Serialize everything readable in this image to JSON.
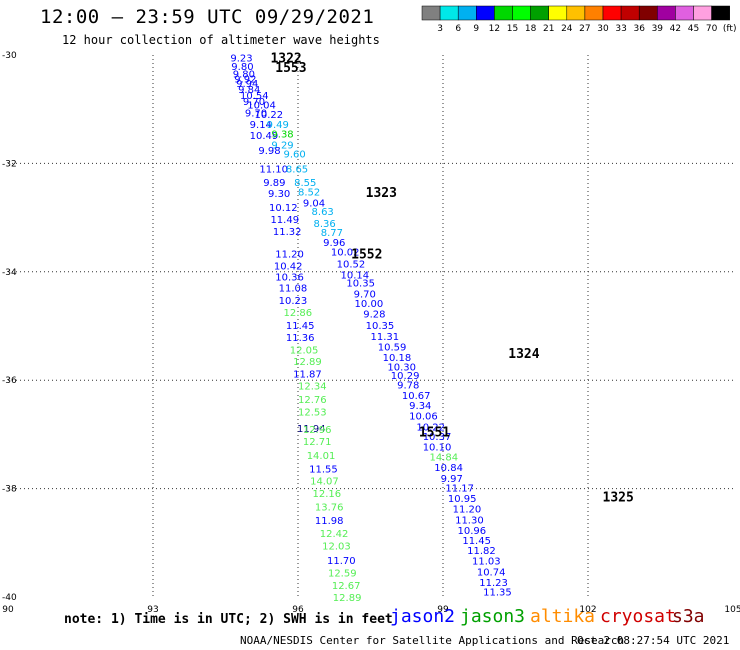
{
  "header": {
    "title": "12:00 – 23:59 UTC 09/29/2021",
    "subtitle": "12 hour collection of altimeter wave heights"
  },
  "footer": {
    "note": "note:  1) Time is in UTC;  2) SWH is in feet",
    "credit": "NOAA/NESDIS Center for Satellite Applications and Research",
    "timestamp": "Oct  2 08:27:54 UTC 2021",
    "satellites": [
      {
        "label": "jason2",
        "color": "#0000ff"
      },
      {
        "label": "jason3",
        "color": "#00a000"
      },
      {
        "label": "altika",
        "color": "#ff8c00"
      },
      {
        "label": "cryosat",
        "color": "#d00000"
      },
      {
        "label": "s3a",
        "color": "#800000"
      }
    ]
  },
  "colorbar": {
    "colors": [
      "#808080",
      "#00e8e8",
      "#00b0f0",
      "#0000ff",
      "#00d800",
      "#00ff00",
      "#00a000",
      "#ffff00",
      "#ffc000",
      "#ff8000",
      "#ff0000",
      "#c00000",
      "#800000",
      "#a000a0",
      "#e060e0",
      "#ffa0e0",
      "#000000"
    ],
    "labels": [
      "3",
      "6",
      "9",
      "12",
      "15",
      "18",
      "21",
      "24",
      "27",
      "30",
      "33",
      "36",
      "39",
      "42",
      "45",
      "70",
      "(ft)"
    ]
  },
  "chart_data": {
    "type": "scatter",
    "xlim": [
      90,
      105
    ],
    "ylim": [
      -40,
      -30
    ],
    "xticks": [
      90,
      93,
      96,
      99,
      102,
      105
    ],
    "yticks": [
      -30,
      -32,
      -34,
      -36,
      -38,
      -40
    ],
    "xtick_labels": [
      "90",
      "93",
      "96",
      "99",
      "102",
      "105"
    ],
    "ytick_labels": [
      "-30",
      "-32",
      "-34",
      "-36",
      "-38",
      "-40"
    ],
    "grid": true,
    "pass_labels": [
      {
        "text": "1322",
        "x": 95.43,
        "y": -30.05,
        "color": "#00a000"
      },
      {
        "text": "1553",
        "x": 95.53,
        "y": -30.22,
        "color": "#800000"
      },
      {
        "text": "1323",
        "x": 97.4,
        "y": -32.53,
        "color": "#00a000"
      },
      {
        "text": "1552",
        "x": 97.1,
        "y": -33.66,
        "color": "#800000"
      },
      {
        "text": "1324",
        "x": 100.35,
        "y": -35.5,
        "color": "#00a000"
      },
      {
        "text": "1551",
        "x": 98.5,
        "y": -36.95,
        "color": "#800000"
      },
      {
        "text": "1325",
        "x": 102.3,
        "y": -38.15,
        "color": "#00a000"
      }
    ],
    "points": [
      {
        "x": 94.6,
        "y": -30.05,
        "v": "9.23",
        "c": "#0000ff"
      },
      {
        "x": 94.62,
        "y": -30.2,
        "v": "9.80",
        "c": "#0000ff"
      },
      {
        "x": 94.65,
        "y": -30.34,
        "v": "9.80",
        "c": "#0000ff"
      },
      {
        "x": 94.68,
        "y": -30.43,
        "v": "9.92",
        "c": "#0000ff"
      },
      {
        "x": 94.72,
        "y": -30.52,
        "v": "9.94",
        "c": "#0000ff"
      },
      {
        "x": 94.76,
        "y": -30.63,
        "v": "9.84",
        "c": "#0000ff"
      },
      {
        "x": 94.8,
        "y": -30.74,
        "v": "10.54",
        "c": "#0000ff"
      },
      {
        "x": 94.86,
        "y": -30.85,
        "v": "9.70",
        "c": "#0000ff"
      },
      {
        "x": 94.95,
        "y": -30.91,
        "v": "10.04",
        "c": "#0000ff"
      },
      {
        "x": 94.9,
        "y": -31.06,
        "v": "9.70",
        "c": "#0000ff"
      },
      {
        "x": 95.1,
        "y": -31.09,
        "v": "10.22",
        "c": "#0000ff"
      },
      {
        "x": 95.0,
        "y": -31.27,
        "v": "9.14",
        "c": "#0000ff"
      },
      {
        "x": 95.35,
        "y": -31.27,
        "v": "9.49",
        "c": "#00b0f0"
      },
      {
        "x": 95.0,
        "y": -31.48,
        "v": "10.49",
        "c": "#0000ff"
      },
      {
        "x": 95.45,
        "y": -31.45,
        "v": "9.38",
        "c": "#00d800"
      },
      {
        "x": 95.45,
        "y": -31.65,
        "v": "9.29",
        "c": "#00b0f0"
      },
      {
        "x": 95.18,
        "y": -31.75,
        "v": "9.98",
        "c": "#0000ff"
      },
      {
        "x": 95.7,
        "y": -31.82,
        "v": "9.60",
        "c": "#00b0f0"
      },
      {
        "x": 95.2,
        "y": -32.09,
        "v": "11.10",
        "c": "#0000ff"
      },
      {
        "x": 95.75,
        "y": -32.09,
        "v": "8.65",
        "c": "#00b0f0"
      },
      {
        "x": 95.28,
        "y": -32.34,
        "v": "9.89",
        "c": "#0000ff"
      },
      {
        "x": 95.92,
        "y": -32.34,
        "v": "8.55",
        "c": "#00b0f0"
      },
      {
        "x": 95.38,
        "y": -32.55,
        "v": "9.30",
        "c": "#0000ff"
      },
      {
        "x": 96.0,
        "y": -32.52,
        "v": "8.52",
        "c": "#00b0f0"
      },
      {
        "x": 96.1,
        "y": -32.72,
        "v": "9.04",
        "c": "#0000ff"
      },
      {
        "x": 95.4,
        "y": -32.8,
        "v": "10.12",
        "c": "#0000ff"
      },
      {
        "x": 96.28,
        "y": -32.88,
        "v": "8.63",
        "c": "#00b0f0"
      },
      {
        "x": 95.43,
        "y": -33.03,
        "v": "11.49",
        "c": "#0000ff"
      },
      {
        "x": 96.32,
        "y": -33.1,
        "v": "8.36",
        "c": "#00b0f0"
      },
      {
        "x": 95.48,
        "y": -33.25,
        "v": "11.32",
        "c": "#0000ff"
      },
      {
        "x": 96.47,
        "y": -33.27,
        "v": "8.77",
        "c": "#00b0f0"
      },
      {
        "x": 96.52,
        "y": -33.45,
        "v": "9.96",
        "c": "#0000ff"
      },
      {
        "x": 95.53,
        "y": -33.66,
        "v": "11.20",
        "c": "#0000ff"
      },
      {
        "x": 96.68,
        "y": -33.63,
        "v": "10.02",
        "c": "#0000ff"
      },
      {
        "x": 95.5,
        "y": -33.88,
        "v": "10.42",
        "c": "#0000ff"
      },
      {
        "x": 96.8,
        "y": -33.85,
        "v": "10.52",
        "c": "#0000ff"
      },
      {
        "x": 95.53,
        "y": -34.09,
        "v": "10.36",
        "c": "#0000ff"
      },
      {
        "x": 96.88,
        "y": -34.05,
        "v": "10.14",
        "c": "#0000ff"
      },
      {
        "x": 95.6,
        "y": -34.29,
        "v": "11.08",
        "c": "#0000ff"
      },
      {
        "x": 97.0,
        "y": -34.2,
        "v": "10.35",
        "c": "#0000ff"
      },
      {
        "x": 95.6,
        "y": -34.52,
        "v": "10.23",
        "c": "#0000ff"
      },
      {
        "x": 97.15,
        "y": -34.4,
        "v": "9.70",
        "c": "#0000ff"
      },
      {
        "x": 95.7,
        "y": -34.74,
        "v": "12.86",
        "c": "#55ee55"
      },
      {
        "x": 97.17,
        "y": -34.58,
        "v": "10.00",
        "c": "#0000ff"
      },
      {
        "x": 97.35,
        "y": -34.77,
        "v": "9.28",
        "c": "#0000ff"
      },
      {
        "x": 95.75,
        "y": -34.98,
        "v": "11.45",
        "c": "#0000ff"
      },
      {
        "x": 97.4,
        "y": -34.98,
        "v": "10.35",
        "c": "#0000ff"
      },
      {
        "x": 95.75,
        "y": -35.2,
        "v": "11.36",
        "c": "#0000ff"
      },
      {
        "x": 97.5,
        "y": -35.18,
        "v": "11.31",
        "c": "#0000ff"
      },
      {
        "x": 95.83,
        "y": -35.43,
        "v": "12.05",
        "c": "#55ee55"
      },
      {
        "x": 97.65,
        "y": -35.38,
        "v": "10.59",
        "c": "#0000ff"
      },
      {
        "x": 97.75,
        "y": -35.57,
        "v": "10.18",
        "c": "#0000ff"
      },
      {
        "x": 95.9,
        "y": -35.65,
        "v": "12.89",
        "c": "#55ee55"
      },
      {
        "x": 97.85,
        "y": -35.75,
        "v": "10.30",
        "c": "#0000ff"
      },
      {
        "x": 95.9,
        "y": -35.88,
        "v": "11.87",
        "c": "#0000ff"
      },
      {
        "x": 97.92,
        "y": -35.9,
        "v": "10.29",
        "c": "#0000ff"
      },
      {
        "x": 96.0,
        "y": -36.1,
        "v": "12.34",
        "c": "#55ee55"
      },
      {
        "x": 98.05,
        "y": -36.08,
        "v": "9.78",
        "c": "#0000ff"
      },
      {
        "x": 98.15,
        "y": -36.27,
        "v": "10.67",
        "c": "#0000ff"
      },
      {
        "x": 96.0,
        "y": -36.35,
        "v": "12.76",
        "c": "#55ee55"
      },
      {
        "x": 98.3,
        "y": -36.46,
        "v": "9.34",
        "c": "#0000ff"
      },
      {
        "x": 96.0,
        "y": -36.58,
        "v": "12.53",
        "c": "#55ee55"
      },
      {
        "x": 98.3,
        "y": -36.65,
        "v": "10.06",
        "c": "#0000ff"
      },
      {
        "x": 98.45,
        "y": -36.85,
        "v": "10.22",
        "c": "#0000ff"
      },
      {
        "x": 95.98,
        "y": -36.88,
        "v": "11.94",
        "c": "#000080"
      },
      {
        "x": 96.1,
        "y": -36.9,
        "v": "12.96",
        "c": "#55ee55"
      },
      {
        "x": 98.58,
        "y": -37.03,
        "v": "10.37",
        "c": "#0000ff"
      },
      {
        "x": 96.1,
        "y": -37.12,
        "v": "12.71",
        "c": "#55ee55"
      },
      {
        "x": 98.58,
        "y": -37.22,
        "v": "10.10",
        "c": "#0000ff"
      },
      {
        "x": 96.18,
        "y": -37.38,
        "v": "14.01",
        "c": "#55ee55"
      },
      {
        "x": 98.72,
        "y": -37.41,
        "v": "14.84",
        "c": "#55ee55"
      },
      {
        "x": 98.82,
        "y": -37.6,
        "v": "10.84",
        "c": "#0000ff"
      },
      {
        "x": 96.23,
        "y": -37.63,
        "v": "11.55",
        "c": "#0000ff"
      },
      {
        "x": 98.95,
        "y": -37.8,
        "v": "9.97",
        "c": "#0000ff"
      },
      {
        "x": 96.25,
        "y": -37.85,
        "v": "14.07",
        "c": "#55ee55"
      },
      {
        "x": 99.05,
        "y": -37.98,
        "v": "11.17",
        "c": "#0000ff"
      },
      {
        "x": 96.3,
        "y": -38.08,
        "v": "12.16",
        "c": "#55ee55"
      },
      {
        "x": 99.1,
        "y": -38.17,
        "v": "10.95",
        "c": "#0000ff"
      },
      {
        "x": 96.35,
        "y": -38.33,
        "v": "13.76",
        "c": "#55ee55"
      },
      {
        "x": 99.2,
        "y": -38.37,
        "v": "11.20",
        "c": "#0000ff"
      },
      {
        "x": 96.35,
        "y": -38.58,
        "v": "11.98",
        "c": "#0000ff"
      },
      {
        "x": 99.25,
        "y": -38.57,
        "v": "11.30",
        "c": "#0000ff"
      },
      {
        "x": 99.3,
        "y": -38.76,
        "v": "10.96",
        "c": "#0000ff"
      },
      {
        "x": 96.45,
        "y": -38.82,
        "v": "12.42",
        "c": "#55ee55"
      },
      {
        "x": 99.4,
        "y": -38.95,
        "v": "11.45",
        "c": "#0000ff"
      },
      {
        "x": 96.5,
        "y": -39.05,
        "v": "12.03",
        "c": "#55ee55"
      },
      {
        "x": 99.5,
        "y": -39.13,
        "v": "11.82",
        "c": "#0000ff"
      },
      {
        "x": 96.6,
        "y": -39.32,
        "v": "11.70",
        "c": "#0000ff"
      },
      {
        "x": 99.6,
        "y": -39.33,
        "v": "11.03",
        "c": "#0000ff"
      },
      {
        "x": 96.62,
        "y": -39.55,
        "v": "12.59",
        "c": "#55ee55"
      },
      {
        "x": 99.7,
        "y": -39.53,
        "v": "10.74",
        "c": "#0000ff"
      },
      {
        "x": 96.7,
        "y": -39.78,
        "v": "12.67",
        "c": "#55ee55"
      },
      {
        "x": 99.75,
        "y": -39.72,
        "v": "11.23",
        "c": "#0000ff"
      },
      {
        "x": 99.83,
        "y": -39.9,
        "v": "11.35",
        "c": "#0000ff"
      },
      {
        "x": 96.72,
        "y": -40.0,
        "v": "12.89",
        "c": "#55ee55"
      }
    ]
  }
}
